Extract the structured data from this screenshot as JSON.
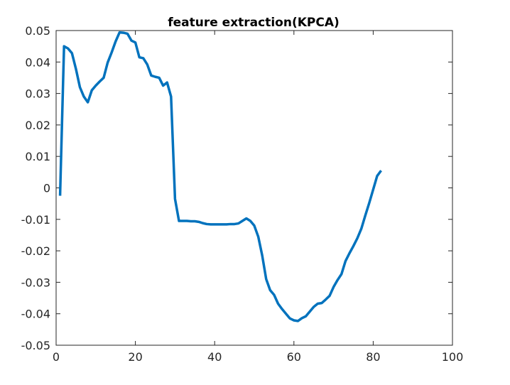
{
  "chart_data": {
    "type": "line",
    "title": "feature extraction(KPCA)",
    "xlabel": "",
    "ylabel": "",
    "xlim": [
      0,
      100
    ],
    "ylim": [
      -0.05,
      0.05
    ],
    "x_ticks": [
      0,
      20,
      40,
      60,
      80,
      100
    ],
    "x_tick_labels": [
      "0",
      "20",
      "40",
      "60",
      "80",
      "100"
    ],
    "y_ticks": [
      -0.05,
      -0.04,
      -0.03,
      -0.02,
      -0.01,
      0,
      0.01,
      0.02,
      0.03,
      0.04,
      0.05
    ],
    "y_tick_labels": [
      "-0.05",
      "-0.04",
      "-0.03",
      "-0.02",
      "-0.01",
      "0",
      "0.01",
      "0.02",
      "0.03",
      "0.04",
      "0.05"
    ],
    "grid": false,
    "legend": "none",
    "line_color": "#0072BD",
    "series": [
      {
        "x": [
          1,
          2,
          3,
          4,
          5,
          6,
          7,
          8,
          9,
          10,
          11,
          12,
          13,
          14,
          15,
          16,
          17,
          18,
          19,
          20,
          21,
          22,
          23,
          24,
          25,
          26,
          27,
          28,
          29,
          30,
          31,
          32,
          33,
          34,
          35,
          36,
          37,
          38,
          39,
          40,
          41,
          42,
          43,
          44,
          45,
          46,
          47,
          48,
          49,
          50,
          51,
          52,
          53,
          54,
          55,
          56,
          57,
          58,
          59,
          60,
          61,
          62,
          63,
          64,
          65,
          66,
          67,
          68,
          69,
          70,
          71,
          72,
          73,
          74,
          75,
          76,
          77,
          78,
          79,
          80,
          81,
          82
        ],
        "values": [
          -0.0025,
          0.045,
          0.0443,
          0.0428,
          0.0378,
          0.032,
          0.029,
          0.0272,
          0.031,
          0.0325,
          0.0338,
          0.035,
          0.0398,
          0.043,
          0.0465,
          0.0494,
          0.0493,
          0.049,
          0.0468,
          0.0462,
          0.0415,
          0.0412,
          0.0392,
          0.0357,
          0.0353,
          0.035,
          0.0325,
          0.0335,
          0.029,
          -0.0035,
          -0.0105,
          -0.0105,
          -0.0105,
          -0.0106,
          -0.0106,
          -0.0108,
          -0.0112,
          -0.0115,
          -0.0116,
          -0.0116,
          -0.0116,
          -0.0116,
          -0.0116,
          -0.0115,
          -0.0115,
          -0.0113,
          -0.0105,
          -0.0097,
          -0.0105,
          -0.012,
          -0.0155,
          -0.0215,
          -0.029,
          -0.0325,
          -0.034,
          -0.0368,
          -0.0385,
          -0.04,
          -0.0415,
          -0.0421,
          -0.0423,
          -0.0414,
          -0.0408,
          -0.0393,
          -0.0378,
          -0.0368,
          -0.0366,
          -0.0355,
          -0.0343,
          -0.0315,
          -0.0293,
          -0.0274,
          -0.0233,
          -0.0208,
          -0.0185,
          -0.016,
          -0.013,
          -0.0088,
          -0.0048,
          -0.0005,
          0.0038,
          0.0055
        ]
      }
    ]
  }
}
